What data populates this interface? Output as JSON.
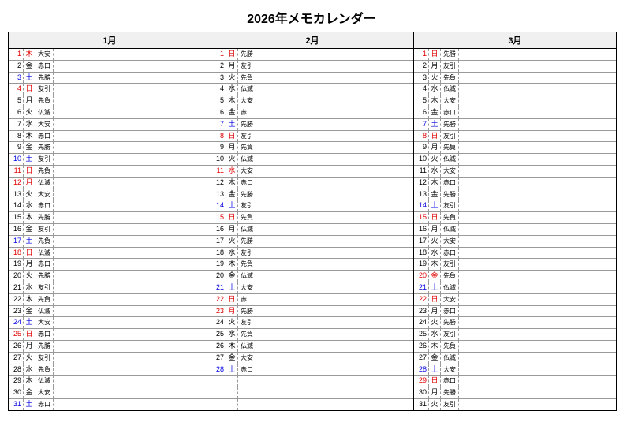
{
  "title": "2026年メモカレンダー",
  "colors": {
    "red": "#e00000",
    "blue": "#0000e0",
    "black": "#000000",
    "header_bg": "#f0f0f0",
    "border": "#000000",
    "grid": "#999999"
  },
  "months": [
    {
      "label": "1月",
      "days": [
        {
          "n": "1",
          "w": "木",
          "r": "大安",
          "c": "red"
        },
        {
          "n": "2",
          "w": "金",
          "r": "赤口",
          "c": "black"
        },
        {
          "n": "3",
          "w": "土",
          "r": "先勝",
          "c": "blue"
        },
        {
          "n": "4",
          "w": "日",
          "r": "友引",
          "c": "red"
        },
        {
          "n": "5",
          "w": "月",
          "r": "先負",
          "c": "black"
        },
        {
          "n": "6",
          "w": "火",
          "r": "仏滅",
          "c": "black"
        },
        {
          "n": "7",
          "w": "水",
          "r": "大安",
          "c": "black"
        },
        {
          "n": "8",
          "w": "木",
          "r": "赤口",
          "c": "black"
        },
        {
          "n": "9",
          "w": "金",
          "r": "先勝",
          "c": "black"
        },
        {
          "n": "10",
          "w": "土",
          "r": "友引",
          "c": "blue"
        },
        {
          "n": "11",
          "w": "日",
          "r": "先負",
          "c": "red"
        },
        {
          "n": "12",
          "w": "月",
          "r": "仏滅",
          "c": "red"
        },
        {
          "n": "13",
          "w": "火",
          "r": "大安",
          "c": "black"
        },
        {
          "n": "14",
          "w": "水",
          "r": "赤口",
          "c": "black"
        },
        {
          "n": "15",
          "w": "木",
          "r": "先勝",
          "c": "black"
        },
        {
          "n": "16",
          "w": "金",
          "r": "友引",
          "c": "black"
        },
        {
          "n": "17",
          "w": "土",
          "r": "先負",
          "c": "blue"
        },
        {
          "n": "18",
          "w": "日",
          "r": "仏滅",
          "c": "red"
        },
        {
          "n": "19",
          "w": "月",
          "r": "赤口",
          "c": "black"
        },
        {
          "n": "20",
          "w": "火",
          "r": "先勝",
          "c": "black"
        },
        {
          "n": "21",
          "w": "水",
          "r": "友引",
          "c": "black"
        },
        {
          "n": "22",
          "w": "木",
          "r": "先負",
          "c": "black"
        },
        {
          "n": "23",
          "w": "金",
          "r": "仏滅",
          "c": "black"
        },
        {
          "n": "24",
          "w": "土",
          "r": "大安",
          "c": "blue"
        },
        {
          "n": "25",
          "w": "日",
          "r": "赤口",
          "c": "red"
        },
        {
          "n": "26",
          "w": "月",
          "r": "先勝",
          "c": "black"
        },
        {
          "n": "27",
          "w": "火",
          "r": "友引",
          "c": "black"
        },
        {
          "n": "28",
          "w": "水",
          "r": "先負",
          "c": "black"
        },
        {
          "n": "29",
          "w": "木",
          "r": "仏滅",
          "c": "black"
        },
        {
          "n": "30",
          "w": "金",
          "r": "大安",
          "c": "black"
        },
        {
          "n": "31",
          "w": "土",
          "r": "赤口",
          "c": "blue"
        }
      ]
    },
    {
      "label": "2月",
      "days": [
        {
          "n": "1",
          "w": "日",
          "r": "先勝",
          "c": "red"
        },
        {
          "n": "2",
          "w": "月",
          "r": "友引",
          "c": "black"
        },
        {
          "n": "3",
          "w": "火",
          "r": "先負",
          "c": "black"
        },
        {
          "n": "4",
          "w": "水",
          "r": "仏滅",
          "c": "black"
        },
        {
          "n": "5",
          "w": "木",
          "r": "大安",
          "c": "black"
        },
        {
          "n": "6",
          "w": "金",
          "r": "赤口",
          "c": "black"
        },
        {
          "n": "7",
          "w": "土",
          "r": "先勝",
          "c": "blue"
        },
        {
          "n": "8",
          "w": "日",
          "r": "友引",
          "c": "red"
        },
        {
          "n": "9",
          "w": "月",
          "r": "先負",
          "c": "black"
        },
        {
          "n": "10",
          "w": "火",
          "r": "仏滅",
          "c": "black"
        },
        {
          "n": "11",
          "w": "水",
          "r": "大安",
          "c": "red"
        },
        {
          "n": "12",
          "w": "木",
          "r": "赤口",
          "c": "black"
        },
        {
          "n": "13",
          "w": "金",
          "r": "先勝",
          "c": "black"
        },
        {
          "n": "14",
          "w": "土",
          "r": "友引",
          "c": "blue"
        },
        {
          "n": "15",
          "w": "日",
          "r": "先負",
          "c": "red"
        },
        {
          "n": "16",
          "w": "月",
          "r": "仏滅",
          "c": "black"
        },
        {
          "n": "17",
          "w": "火",
          "r": "先勝",
          "c": "black"
        },
        {
          "n": "18",
          "w": "水",
          "r": "友引",
          "c": "black"
        },
        {
          "n": "19",
          "w": "木",
          "r": "先負",
          "c": "black"
        },
        {
          "n": "20",
          "w": "金",
          "r": "仏滅",
          "c": "black"
        },
        {
          "n": "21",
          "w": "土",
          "r": "大安",
          "c": "blue"
        },
        {
          "n": "22",
          "w": "日",
          "r": "赤口",
          "c": "red"
        },
        {
          "n": "23",
          "w": "月",
          "r": "先勝",
          "c": "red"
        },
        {
          "n": "24",
          "w": "火",
          "r": "友引",
          "c": "black"
        },
        {
          "n": "25",
          "w": "水",
          "r": "先負",
          "c": "black"
        },
        {
          "n": "26",
          "w": "木",
          "r": "仏滅",
          "c": "black"
        },
        {
          "n": "27",
          "w": "金",
          "r": "大安",
          "c": "black"
        },
        {
          "n": "28",
          "w": "土",
          "r": "赤口",
          "c": "blue"
        },
        {
          "n": "",
          "w": "",
          "r": "",
          "c": "black"
        },
        {
          "n": "",
          "w": "",
          "r": "",
          "c": "black"
        },
        {
          "n": "",
          "w": "",
          "r": "",
          "c": "black"
        }
      ]
    },
    {
      "label": "3月",
      "days": [
        {
          "n": "1",
          "w": "日",
          "r": "先勝",
          "c": "red"
        },
        {
          "n": "2",
          "w": "月",
          "r": "友引",
          "c": "black"
        },
        {
          "n": "3",
          "w": "火",
          "r": "先負",
          "c": "black"
        },
        {
          "n": "4",
          "w": "水",
          "r": "仏滅",
          "c": "black"
        },
        {
          "n": "5",
          "w": "木",
          "r": "大安",
          "c": "black"
        },
        {
          "n": "6",
          "w": "金",
          "r": "赤口",
          "c": "black"
        },
        {
          "n": "7",
          "w": "土",
          "r": "先勝",
          "c": "blue"
        },
        {
          "n": "8",
          "w": "日",
          "r": "友引",
          "c": "red"
        },
        {
          "n": "9",
          "w": "月",
          "r": "先負",
          "c": "black"
        },
        {
          "n": "10",
          "w": "火",
          "r": "仏滅",
          "c": "black"
        },
        {
          "n": "11",
          "w": "水",
          "r": "大安",
          "c": "black"
        },
        {
          "n": "12",
          "w": "木",
          "r": "赤口",
          "c": "black"
        },
        {
          "n": "13",
          "w": "金",
          "r": "先勝",
          "c": "black"
        },
        {
          "n": "14",
          "w": "土",
          "r": "友引",
          "c": "blue"
        },
        {
          "n": "15",
          "w": "日",
          "r": "先負",
          "c": "red"
        },
        {
          "n": "16",
          "w": "月",
          "r": "仏滅",
          "c": "black"
        },
        {
          "n": "17",
          "w": "火",
          "r": "大安",
          "c": "black"
        },
        {
          "n": "18",
          "w": "水",
          "r": "赤口",
          "c": "black"
        },
        {
          "n": "19",
          "w": "木",
          "r": "友引",
          "c": "black"
        },
        {
          "n": "20",
          "w": "金",
          "r": "先負",
          "c": "red"
        },
        {
          "n": "21",
          "w": "土",
          "r": "仏滅",
          "c": "blue"
        },
        {
          "n": "22",
          "w": "日",
          "r": "大安",
          "c": "red"
        },
        {
          "n": "23",
          "w": "月",
          "r": "赤口",
          "c": "black"
        },
        {
          "n": "24",
          "w": "火",
          "r": "先勝",
          "c": "black"
        },
        {
          "n": "25",
          "w": "水",
          "r": "友引",
          "c": "black"
        },
        {
          "n": "26",
          "w": "木",
          "r": "先負",
          "c": "black"
        },
        {
          "n": "27",
          "w": "金",
          "r": "仏滅",
          "c": "black"
        },
        {
          "n": "28",
          "w": "土",
          "r": "大安",
          "c": "blue"
        },
        {
          "n": "29",
          "w": "日",
          "r": "赤口",
          "c": "red"
        },
        {
          "n": "30",
          "w": "月",
          "r": "先勝",
          "c": "black"
        },
        {
          "n": "31",
          "w": "火",
          "r": "友引",
          "c": "black"
        }
      ]
    }
  ]
}
